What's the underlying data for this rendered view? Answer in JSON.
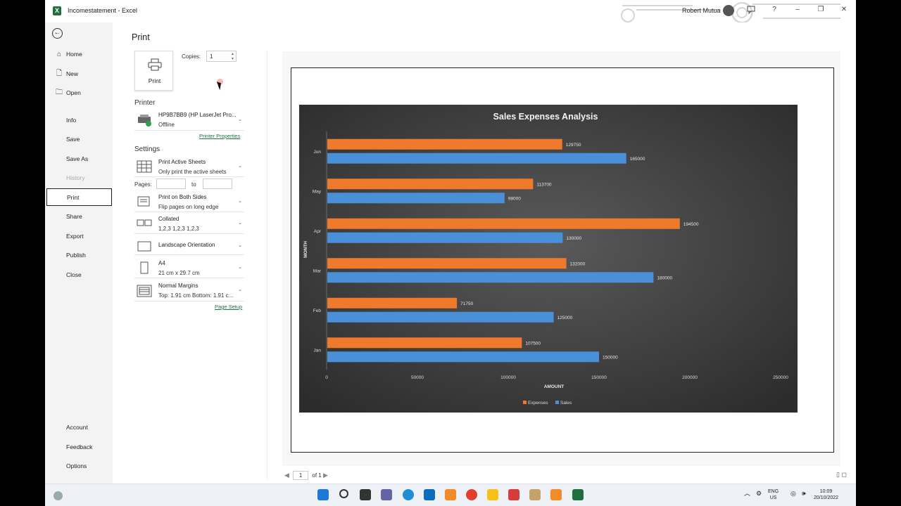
{
  "window": {
    "app_logo": "X",
    "title": "Incomestatement - Excel",
    "user_name": "Robert Mutua",
    "icons": [
      "feedback-icon",
      "help-icon",
      "minimize-icon",
      "maximize-icon",
      "close-icon"
    ],
    "help_glyph": "?",
    "minimize_glyph": "–",
    "maximize_glyph": "❐",
    "close_glyph": "✕"
  },
  "nav": {
    "items": [
      {
        "label": "Home",
        "icon": "home-icon",
        "glyph": "⌂"
      },
      {
        "label": "New",
        "icon": "new-file-icon",
        "glyph": "🗋"
      },
      {
        "label": "Open",
        "icon": "open-folder-icon",
        "glyph": "🗀"
      },
      {
        "label": "Info"
      },
      {
        "label": "Save"
      },
      {
        "label": "Save As"
      },
      {
        "label": "History",
        "disabled": true
      },
      {
        "label": "Print",
        "active": true
      },
      {
        "label": "Share"
      },
      {
        "label": "Export"
      },
      {
        "label": "Publish"
      },
      {
        "label": "Close"
      }
    ],
    "bottom_items": [
      {
        "label": "Account"
      },
      {
        "label": "Feedback"
      },
      {
        "label": "Options"
      }
    ]
  },
  "print": {
    "title": "Print",
    "button_label": "Print",
    "copies_label": "Copies:",
    "copies_value": "1",
    "printer_heading": "Printer",
    "printer_name": "HP9B7BB9 (HP LaserJet Pro...",
    "printer_status": "Offline",
    "printer_properties_link": "Printer Properties",
    "settings_heading": "Settings",
    "settings": [
      {
        "line1": "Print Active Sheets",
        "line2": "Only print the active sheets",
        "icon": "sheets-icon"
      },
      {
        "line1": "Print on Both Sides",
        "line2": "Flip pages on long edge",
        "icon": "duplex-icon"
      },
      {
        "line1": "Collated",
        "line2": "1,2,3    1,2,3    1,2,3",
        "icon": "collate-icon"
      },
      {
        "line1": "Landscape Orientation",
        "line2": "",
        "icon": "landscape-icon"
      },
      {
        "line1": "A4",
        "line2": "21 cm x 29.7 cm",
        "icon": "paper-size-icon"
      },
      {
        "line1": "Normal Margins",
        "line2": "Top: 1.91 cm Bottom: 1.91 c...",
        "icon": "margins-icon"
      }
    ],
    "pages_label": "Pages:",
    "pages_to": "to",
    "page_setup_link": "Page Setup",
    "pager_current": "1",
    "pager_total": "of 1",
    "pager_prev": "◀",
    "pager_next": "▶",
    "zoom_icons": "▯ ◻"
  },
  "chart_data": {
    "type": "bar",
    "orientation": "horizontal",
    "title": "Sales Expenses Analysis",
    "xlabel": "AMOUNT",
    "ylabel": "MONTH",
    "categories": [
      "Jan",
      "Feb",
      "Mar",
      "Apr",
      "May",
      "Jun"
    ],
    "series": [
      {
        "name": "Expenses",
        "color": "#f07a2c",
        "values": [
          107500,
          71750,
          132000,
          194500,
          113700,
          129750
        ]
      },
      {
        "name": "Sales",
        "color": "#4a90d9",
        "values": [
          150000,
          125000,
          180000,
          130000,
          98000,
          165000
        ]
      }
    ],
    "xlim": [
      0,
      250000
    ],
    "xticks": [
      "0",
      "50000",
      "100000",
      "150000",
      "200000",
      "250000"
    ],
    "legend": "bottom",
    "grid": false,
    "background": "#3a3a3a"
  },
  "taskbar": {
    "language": "ENG",
    "region": "US",
    "time": "10:09",
    "date": "20/10/2022"
  }
}
